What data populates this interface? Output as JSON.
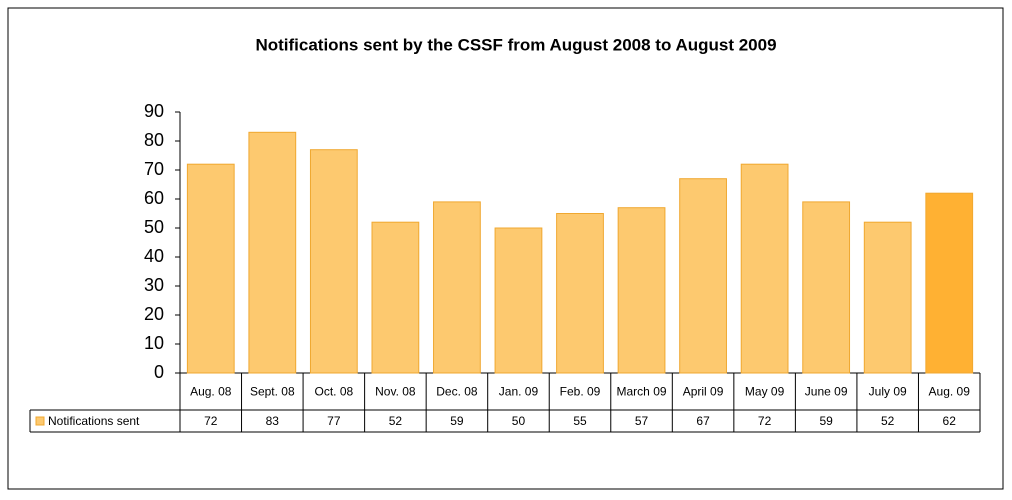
{
  "chart_data": {
    "type": "bar",
    "title": "Notifications sent by the CSSF from August 2008 to August 2009",
    "categories": [
      "Aug. 08",
      "Sept. 08",
      "Oct. 08",
      "Nov. 08",
      "Dec. 08",
      "Jan. 09",
      "Feb. 09",
      "March 09",
      "April 09",
      "May 09",
      "June 09",
      "July 09",
      "Aug. 09"
    ],
    "series": [
      {
        "name": "Notifications sent",
        "color": "#fdc96f",
        "colors": [
          "#fdc96f",
          "#fdc96f",
          "#fdc96f",
          "#fdc96f",
          "#fdc96f",
          "#fdc96f",
          "#fdc96f",
          "#fdc96f",
          "#fdc96f",
          "#fdc96f",
          "#fdc96f",
          "#fdc96f",
          "#ffb133"
        ],
        "values": [
          72,
          83,
          77,
          52,
          59,
          50,
          55,
          57,
          67,
          72,
          59,
          52,
          62
        ]
      }
    ],
    "ylim": [
      0,
      90
    ],
    "yticks": [
      0,
      10,
      20,
      30,
      40,
      50,
      60,
      70,
      80,
      90
    ],
    "grid": false,
    "data_table": true
  }
}
